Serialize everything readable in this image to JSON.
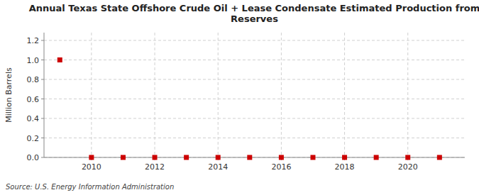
{
  "chart_data": {
    "type": "scatter",
    "title": "Annual Texas State Offshore Crude Oil + Lease Condensate Estimated Production from\nReserves",
    "y_label": "Million Barrels",
    "source": "Source: U.S. Energy Information Administration",
    "x": [
      2009,
      2010,
      2011,
      2012,
      2013,
      2014,
      2015,
      2016,
      2017,
      2018,
      2019,
      2020,
      2021
    ],
    "values": [
      1.0,
      0.0,
      0.0,
      0.0,
      0.0,
      0.0,
      0.0,
      0.0,
      0.0,
      0.0,
      0.0,
      0.0,
      0.0
    ],
    "color": "#cc0000",
    "marker": "square",
    "xlim": [
      2008.5,
      2021.8
    ],
    "ylim": [
      0.0,
      1.28
    ],
    "xticks": [
      2010,
      2012,
      2014,
      2016,
      2018,
      2020
    ],
    "yticks": [
      {
        "value": 0.0,
        "label": "0.0"
      },
      0.2,
      0.4,
      0.6,
      0.8,
      {
        "value": 1.0,
        "label": "1.0"
      },
      1.2
    ],
    "grid": true
  }
}
